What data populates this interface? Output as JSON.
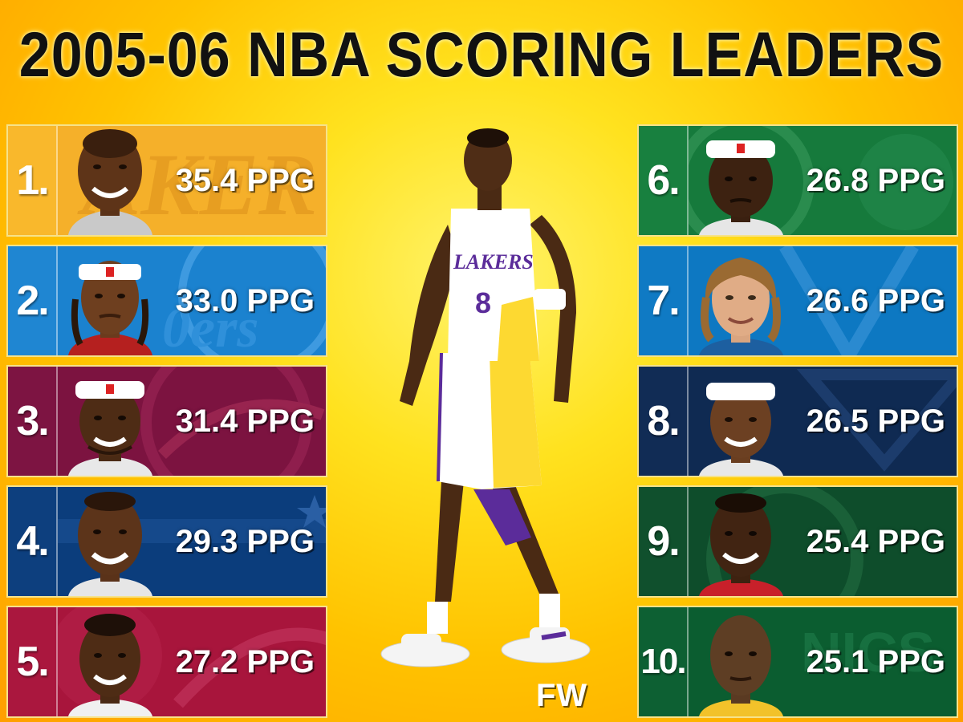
{
  "title": "2005-06 NBA SCORING LEADERS",
  "watermark": "FW",
  "leaders": [
    {
      "rank": "1.",
      "ppg": "35.4 PPG",
      "color": "#f7b52a",
      "rank_color": "#f9b82c"
    },
    {
      "rank": "2.",
      "ppg": "33.0 PPG",
      "color": "#1b82cf",
      "rank_color": "#1f86d2"
    },
    {
      "rank": "3.",
      "ppg": "31.4 PPG",
      "color": "#7c1340",
      "rank_color": "#7d1442"
    },
    {
      "rank": "4.",
      "ppg": "29.3 PPG",
      "color": "#0b3d7c",
      "rank_color": "#0d3f7e"
    },
    {
      "rank": "5.",
      "ppg": "27.2 PPG",
      "color": "#a8153c",
      "rank_color": "#aa173e"
    },
    {
      "rank": "6.",
      "ppg": "26.8 PPG",
      "color": "#167a3c",
      "rank_color": "#18803f"
    },
    {
      "rank": "7.",
      "ppg": "26.6 PPG",
      "color": "#0d78c2",
      "rank_color": "#0f7ac4"
    },
    {
      "rank": "8.",
      "ppg": "26.5 PPG",
      "color": "#0f2a52",
      "rank_color": "#112c55"
    },
    {
      "rank": "9.",
      "ppg": "25.4 PPG",
      "color": "#0e4d2b",
      "rank_color": "#10502d"
    },
    {
      "rank": "10.",
      "ppg": "25.1 PPG",
      "color": "#0b5d30",
      "rank_color": "#0d6033"
    }
  ]
}
